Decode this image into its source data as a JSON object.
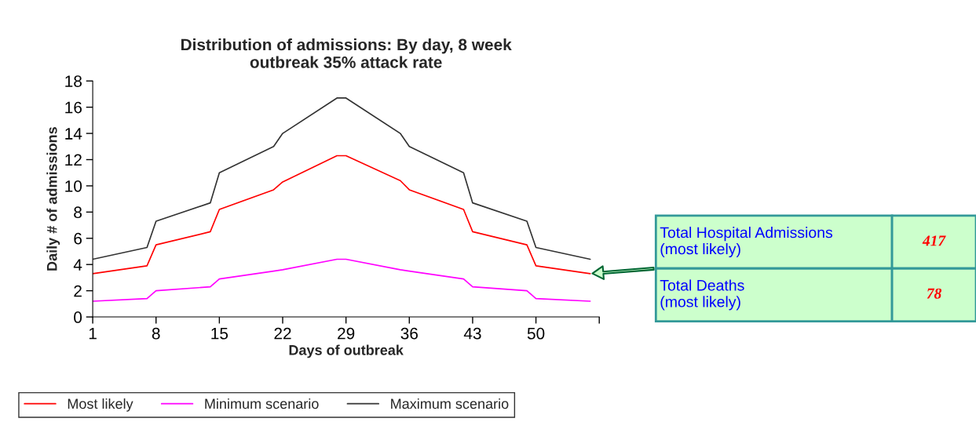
{
  "chart_data": {
    "type": "line",
    "title": "Distribution of admissions: By day, 8 week\noutbreak 35% attack rate",
    "xlabel": "Days of outbreak",
    "ylabel": "Daily # of admissions",
    "x": [
      1,
      7,
      8,
      14,
      15,
      21,
      22,
      28,
      29,
      35,
      36,
      42,
      43,
      49,
      50,
      56
    ],
    "series": [
      {
        "name": "Most likely",
        "color": "#ff0000",
        "values": [
          3.3,
          3.9,
          5.5,
          6.5,
          8.2,
          9.7,
          10.3,
          12.3,
          12.3,
          10.4,
          9.7,
          8.2,
          6.5,
          5.5,
          3.9,
          3.3
        ]
      },
      {
        "name": "Minimum scenario",
        "color": "#ff00ff",
        "values": [
          1.2,
          1.4,
          2.0,
          2.3,
          2.9,
          3.5,
          3.6,
          4.4,
          4.4,
          3.6,
          3.5,
          2.9,
          2.3,
          2.0,
          1.4,
          1.2
        ]
      },
      {
        "name": "Maximum scenario",
        "color": "#333333",
        "values": [
          4.4,
          5.3,
          7.3,
          8.7,
          11.0,
          13.0,
          14.0,
          16.7,
          16.7,
          14.0,
          13.0,
          11.0,
          8.7,
          7.3,
          5.3,
          4.4
        ]
      }
    ],
    "xlim": [
      1,
      57
    ],
    "xticks": [
      1,
      8,
      15,
      22,
      29,
      36,
      43,
      50,
      {
        "value": 57,
        "label": null
      }
    ],
    "ylim": [
      0,
      18
    ],
    "yticks": [
      0,
      2,
      4,
      6,
      8,
      10,
      12,
      14,
      16,
      18
    ],
    "grid": false,
    "legend": "bottom",
    "marker": "none",
    "line_style": "solid",
    "annotations": [
      "Total Hospital Admissions\n(most likely)",
      "417",
      "Total Deaths\n(most likely)",
      "78"
    ]
  }
}
